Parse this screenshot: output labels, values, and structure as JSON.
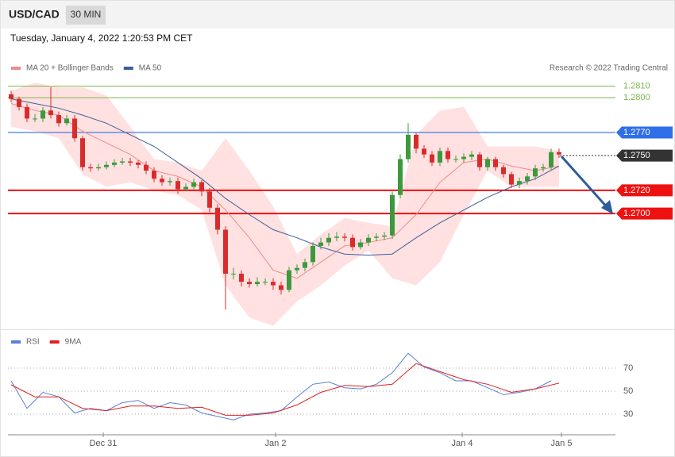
{
  "header": {
    "symbol": "USD/CAD",
    "timeframe": "30 MIN",
    "datetime": "Tuesday, January 4, 2022 1:20:53 PM CET"
  },
  "chart_data": [
    {
      "type": "candlestick",
      "source": "Research © 2022 Trading Central",
      "xlim": [
        -0.4,
        76.1
      ],
      "ylim": [
        1.26,
        1.2857
      ],
      "up_color": "#3c9a3c",
      "down_color": "#d92b2b",
      "open": [
        1.2803,
        1.2799,
        1.2792,
        1.2782,
        1.2782,
        1.2789,
        1.2785,
        1.2778,
        1.2782,
        1.2765,
        1.274,
        1.2739,
        1.274,
        1.2742,
        1.2744,
        1.2745,
        1.2744,
        1.2742,
        1.2737,
        1.273,
        1.2727,
        1.2728,
        1.2721,
        1.2723,
        1.2727,
        1.2719,
        1.2705,
        1.2686,
        1.2648,
        1.2648,
        1.2641,
        1.2639,
        1.2641,
        1.2641,
        1.2638,
        1.2634,
        1.2651,
        1.2653,
        1.2658,
        1.2672,
        1.2675,
        1.2679,
        1.268,
        1.2679,
        1.2671,
        1.2675,
        1.2679,
        1.268,
        1.2681,
        1.2716,
        1.2747,
        1.2768,
        1.2756,
        1.2751,
        1.2744,
        1.2754,
        1.2747,
        1.2747,
        1.2749,
        1.2751,
        1.274,
        1.2747,
        1.274,
        1.2734,
        1.2725,
        1.2728,
        1.2732,
        1.2739,
        1.274,
        1.2753
      ],
      "high": [
        1.2806,
        1.2801,
        1.2795,
        1.2786,
        1.2792,
        1.2809,
        1.2788,
        1.2785,
        1.2785,
        1.2767,
        1.2743,
        1.2743,
        1.2745,
        1.2747,
        1.2748,
        1.2748,
        1.2746,
        1.2745,
        1.274,
        1.2733,
        1.2731,
        1.2731,
        1.2726,
        1.273,
        1.2729,
        1.2722,
        1.2708,
        1.2689,
        1.2653,
        1.2651,
        1.2644,
        1.2645,
        1.2644,
        1.2644,
        1.2641,
        1.2654,
        1.2656,
        1.2661,
        1.2675,
        1.2679,
        1.2683,
        1.2684,
        1.2683,
        1.2682,
        1.2678,
        1.2682,
        1.2683,
        1.2684,
        1.2719,
        1.2751,
        1.2778,
        1.277,
        1.2759,
        1.2754,
        1.2757,
        1.2757,
        1.275,
        1.2752,
        1.2754,
        1.2753,
        1.2749,
        1.2749,
        1.2742,
        1.2736,
        1.2731,
        1.2735,
        1.2742,
        1.2743,
        1.2756,
        1.2756
      ],
      "low": [
        1.2796,
        1.2789,
        1.2779,
        1.2779,
        1.2779,
        1.2782,
        1.2775,
        1.2776,
        1.2762,
        1.2737,
        1.2736,
        1.2737,
        1.2738,
        1.274,
        1.2742,
        1.2741,
        1.2739,
        1.2734,
        1.2727,
        1.2724,
        1.2724,
        1.2717,
        1.2719,
        1.2721,
        1.2715,
        1.2701,
        1.2682,
        1.2617,
        1.2643,
        1.2637,
        1.2636,
        1.2637,
        1.2638,
        1.2634,
        1.263,
        1.2632,
        1.2648,
        1.265,
        1.2655,
        1.2669,
        1.2672,
        1.2676,
        1.2676,
        1.2668,
        1.2669,
        1.2672,
        1.2676,
        1.2677,
        1.2678,
        1.2713,
        1.2744,
        1.2752,
        1.2748,
        1.2741,
        1.2741,
        1.2744,
        1.2744,
        1.2744,
        1.2746,
        1.2737,
        1.2737,
        1.2737,
        1.2731,
        1.2722,
        1.2722,
        1.2725,
        1.2729,
        1.2736,
        1.2737,
        1.2748
      ],
      "close": [
        1.2799,
        1.2792,
        1.2782,
        1.2782,
        1.2789,
        1.2785,
        1.2778,
        1.2782,
        1.2765,
        1.274,
        1.2739,
        1.274,
        1.2742,
        1.2744,
        1.2745,
        1.2744,
        1.2742,
        1.2737,
        1.273,
        1.2727,
        1.2728,
        1.2721,
        1.2723,
        1.2727,
        1.2719,
        1.2705,
        1.2686,
        1.2648,
        1.2648,
        1.2641,
        1.2639,
        1.2641,
        1.2641,
        1.2638,
        1.2634,
        1.2651,
        1.2653,
        1.2658,
        1.2672,
        1.2675,
        1.2679,
        1.268,
        1.2679,
        1.2671,
        1.2675,
        1.2679,
        1.268,
        1.2681,
        1.2716,
        1.2747,
        1.2768,
        1.2756,
        1.2751,
        1.2744,
        1.2754,
        1.2747,
        1.2747,
        1.2749,
        1.2751,
        1.274,
        1.2747,
        1.274,
        1.2734,
        1.2725,
        1.2728,
        1.2732,
        1.2739,
        1.274,
        1.2753,
        1.2751
      ],
      "series": [
        {
          "name": "MA 20 + Bollinger Bands",
          "color": "#f08a8a",
          "band_color": "#ffdada",
          "x": [
            0,
            3,
            6,
            9,
            12,
            15,
            18,
            21,
            24,
            27,
            30,
            33,
            36,
            39,
            42,
            45,
            48,
            51,
            54,
            57,
            60,
            63,
            66,
            69
          ],
          "values": [
            1.2795,
            1.2789,
            1.2785,
            1.2771,
            1.2761,
            1.2751,
            1.2737,
            1.2732,
            1.2723,
            1.2703,
            1.2679,
            1.2651,
            1.2644,
            1.2658,
            1.2672,
            1.2675,
            1.2679,
            1.2699,
            1.2727,
            1.2744,
            1.2747,
            1.2741,
            1.2737,
            1.2741
          ],
          "upper": [
            1.2806,
            1.2813,
            1.2809,
            1.2809,
            1.2802,
            1.2775,
            1.2747,
            1.2744,
            1.2737,
            1.2765,
            1.2737,
            1.2706,
            1.2665,
            1.2682,
            1.2696,
            1.2692,
            1.2689,
            1.2768,
            1.2789,
            1.2792,
            1.2758,
            1.2758,
            1.2758,
            1.2754
          ],
          "lower": [
            1.2775,
            1.2771,
            1.2765,
            1.2734,
            1.2723,
            1.2727,
            1.272,
            1.2716,
            1.2703,
            1.2638,
            1.261,
            1.2603,
            1.2624,
            1.2638,
            1.2655,
            1.2668,
            1.2644,
            1.2638,
            1.2658,
            1.2699,
            1.2737,
            1.2723,
            1.2723,
            1.2723
          ]
        },
        {
          "name": "MA 50",
          "color": "#3d5f99",
          "x": [
            0,
            3,
            6,
            9,
            12,
            15,
            18,
            21,
            24,
            27,
            30,
            33,
            36,
            39,
            42,
            45,
            48,
            51,
            54,
            57,
            60,
            63,
            66,
            69
          ],
          "values": [
            1.2799,
            1.2795,
            1.2791,
            1.2785,
            1.2778,
            1.2768,
            1.2758,
            1.2744,
            1.273,
            1.2713,
            1.2699,
            1.2686,
            1.2679,
            1.2671,
            1.2665,
            1.2664,
            1.2665,
            1.2679,
            1.2692,
            1.2703,
            1.2714,
            1.2723,
            1.273,
            1.2741
          ]
        }
      ],
      "levels": [
        {
          "value": 1.281,
          "label": "1.2810",
          "color": "#7ab648",
          "box": false,
          "dash": false
        },
        {
          "value": 1.28,
          "label": "1.2800",
          "color": "#7ab648",
          "box": false,
          "dash": false
        },
        {
          "value": 1.277,
          "label": "1.2770",
          "color": "#2f6fe8",
          "box": true,
          "dash": false
        },
        {
          "value": 1.275,
          "label": "1.2750",
          "color": "#333333",
          "box": true,
          "dash": true
        },
        {
          "value": 1.272,
          "label": "1.2720",
          "color": "#ee1111",
          "box": true,
          "dash": false
        },
        {
          "value": 1.27,
          "label": "1.2700",
          "color": "#ee1111",
          "box": true,
          "dash": false
        }
      ]
    },
    {
      "type": "line",
      "xlim": [
        -0.4,
        76.1
      ],
      "ylim": [
        14.1,
        86.6
      ],
      "yticks": [
        30,
        50,
        70
      ],
      "xticks": [
        {
          "value": 11.6,
          "label": "Dec 31"
        },
        {
          "value": 33.3,
          "label": "Jan 2"
        },
        {
          "value": 56.8,
          "label": "Jan 4"
        },
        {
          "value": 69.3,
          "label": "Jan 5"
        }
      ],
      "series": [
        {
          "name": "RSI",
          "color": "#5b7fd6",
          "x": [
            0,
            2,
            4,
            6,
            8,
            10,
            12,
            14,
            16,
            18,
            20,
            22,
            24,
            26,
            28,
            30,
            32,
            34,
            36,
            38,
            40,
            42,
            44,
            46,
            48,
            50,
            52,
            54,
            56,
            58,
            60,
            62,
            64,
            66,
            68
          ],
          "values": [
            59,
            35,
            49,
            45,
            31,
            35,
            33,
            40,
            42,
            35,
            40,
            38,
            31,
            28,
            25,
            30,
            31,
            33,
            45,
            56,
            58,
            53,
            52,
            56,
            66,
            83,
            71,
            66,
            59,
            59,
            53,
            47,
            49,
            52,
            59
          ]
        },
        {
          "name": "9MA",
          "color": "#e02020",
          "x": [
            0,
            3,
            6,
            9,
            12,
            15,
            18,
            21,
            24,
            27,
            30,
            33,
            36,
            39,
            42,
            45,
            48,
            51,
            54,
            57,
            60,
            63,
            66,
            69
          ],
          "values": [
            55.5,
            45,
            45,
            35,
            33,
            37,
            37,
            35,
            36,
            29,
            29,
            31,
            38,
            49,
            55,
            54,
            56,
            74,
            67,
            60,
            56,
            49,
            52,
            57
          ]
        }
      ]
    }
  ]
}
